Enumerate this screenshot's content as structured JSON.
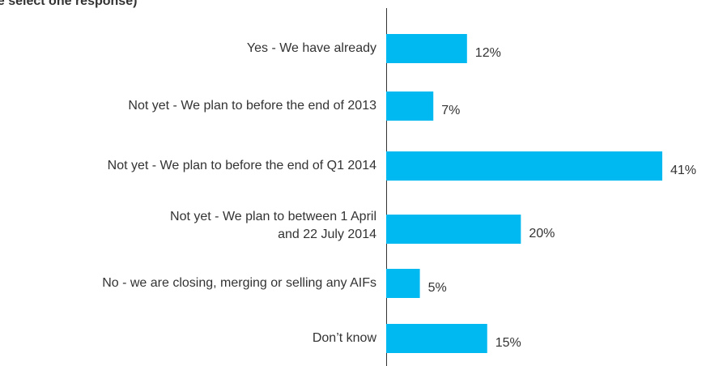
{
  "chart_data": {
    "type": "bar",
    "orientation": "horizontal",
    "title": "se select one response)",
    "categories": [
      "Yes - We have already",
      "Not yet - We plan to before the end of 2013",
      "Not yet - We plan to before the end of Q1 2014",
      "Not yet - We plan to between 1 April\nand 22 July 2014",
      "No - we are closing, merging or selling any AIFs",
      "Don’t know"
    ],
    "values": [
      12,
      7,
      41,
      20,
      5,
      15
    ],
    "value_labels": [
      "12%",
      "7%",
      "41%",
      "20%",
      "5%",
      "15%"
    ],
    "color": "#00b9f1"
  }
}
